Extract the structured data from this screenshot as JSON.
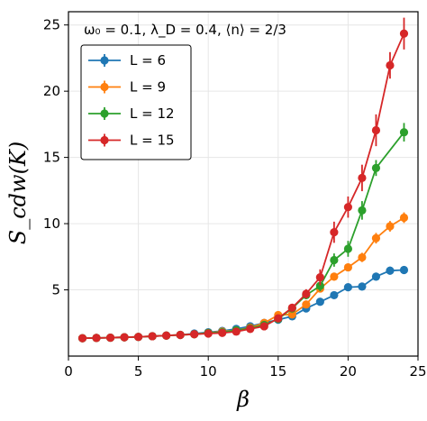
{
  "chart_data": {
    "type": "line",
    "annotation": "ω₀ = 0.1, λ_D = 0.4, ⟨n⟩ = 2/3",
    "xlabel": "β",
    "ylabel": "S_cdw(K)",
    "xlim": [
      0,
      25
    ],
    "ylim": [
      0,
      26
    ],
    "xticks": [
      0,
      5,
      10,
      15,
      20,
      25
    ],
    "yticks": [
      5,
      10,
      15,
      20,
      25
    ],
    "grid": true,
    "legend_position": "upper-left",
    "series": [
      {
        "name": "L = 6",
        "color": "#1f77b4",
        "x": [
          1,
          2,
          3,
          4,
          5,
          6,
          7,
          8,
          9,
          10,
          11,
          12,
          13,
          14,
          15,
          16,
          17,
          18,
          19,
          20,
          21,
          22,
          23,
          24
        ],
        "y": [
          1.35,
          1.37,
          1.39,
          1.42,
          1.45,
          1.5,
          1.55,
          1.6,
          1.7,
          1.8,
          1.9,
          2.05,
          2.25,
          2.5,
          2.75,
          3.0,
          3.6,
          4.1,
          4.6,
          5.2,
          5.25,
          6.0,
          6.45,
          6.5
        ],
        "err": [
          0.05,
          0.05,
          0.05,
          0.05,
          0.05,
          0.05,
          0.05,
          0.05,
          0.06,
          0.06,
          0.07,
          0.08,
          0.1,
          0.12,
          0.15,
          0.18,
          0.2,
          0.2,
          0.25,
          0.25,
          0.25,
          0.3,
          0.3,
          0.3
        ]
      },
      {
        "name": "L = 9",
        "color": "#ff7f0e",
        "x": [
          1,
          2,
          3,
          4,
          5,
          6,
          7,
          8,
          9,
          10,
          11,
          12,
          13,
          14,
          15,
          16,
          17,
          18,
          19,
          20,
          21,
          22,
          23,
          24
        ],
        "y": [
          1.35,
          1.37,
          1.39,
          1.42,
          1.45,
          1.5,
          1.55,
          1.6,
          1.65,
          1.75,
          1.85,
          1.95,
          2.15,
          2.5,
          3.1,
          3.15,
          3.9,
          5.1,
          6.0,
          6.7,
          7.45,
          8.9,
          9.8,
          10.45
        ],
        "err": [
          0.05,
          0.05,
          0.05,
          0.05,
          0.05,
          0.05,
          0.05,
          0.05,
          0.06,
          0.06,
          0.07,
          0.08,
          0.1,
          0.12,
          0.15,
          0.2,
          0.25,
          0.3,
          0.3,
          0.3,
          0.35,
          0.4,
          0.4,
          0.4
        ]
      },
      {
        "name": "L = 12",
        "color": "#2ca02c",
        "x": [
          1,
          2,
          3,
          4,
          5,
          6,
          7,
          8,
          9,
          10,
          11,
          12,
          13,
          14,
          15,
          16,
          17,
          18,
          19,
          20,
          21,
          22,
          23,
          24
        ],
        "y": [
          1.35,
          1.37,
          1.39,
          1.42,
          1.45,
          1.5,
          1.55,
          1.6,
          1.65,
          1.75,
          1.8,
          1.95,
          2.1,
          2.35,
          2.8,
          3.6,
          4.6,
          5.3,
          7.25,
          8.1,
          11.0,
          14.2,
          null,
          16.9
        ],
        "err": [
          0.05,
          0.05,
          0.05,
          0.05,
          0.05,
          0.05,
          0.05,
          0.05,
          0.06,
          0.06,
          0.07,
          0.08,
          0.1,
          0.12,
          0.15,
          0.2,
          0.3,
          0.4,
          0.5,
          0.6,
          0.7,
          0.6,
          null,
          0.7
        ]
      },
      {
        "name": "L = 15",
        "color": "#d62728",
        "x": [
          1,
          2,
          3,
          4,
          5,
          6,
          7,
          8,
          9,
          10,
          11,
          12,
          13,
          14,
          15,
          16,
          17,
          18,
          19,
          20,
          21,
          22,
          23,
          24
        ],
        "y": [
          1.35,
          1.37,
          1.39,
          1.42,
          1.45,
          1.5,
          1.55,
          1.6,
          1.65,
          1.7,
          1.75,
          1.85,
          2.05,
          2.25,
          2.85,
          3.65,
          4.7,
          5.95,
          9.35,
          11.25,
          13.45,
          17.05,
          21.95,
          24.35
        ],
        "err": [
          0.05,
          0.05,
          0.05,
          0.05,
          0.05,
          0.05,
          0.05,
          0.05,
          0.06,
          0.06,
          0.07,
          0.08,
          0.1,
          0.12,
          0.15,
          0.25,
          0.35,
          0.6,
          0.8,
          0.8,
          1.0,
          1.2,
          1.0,
          1.2
        ]
      }
    ]
  }
}
